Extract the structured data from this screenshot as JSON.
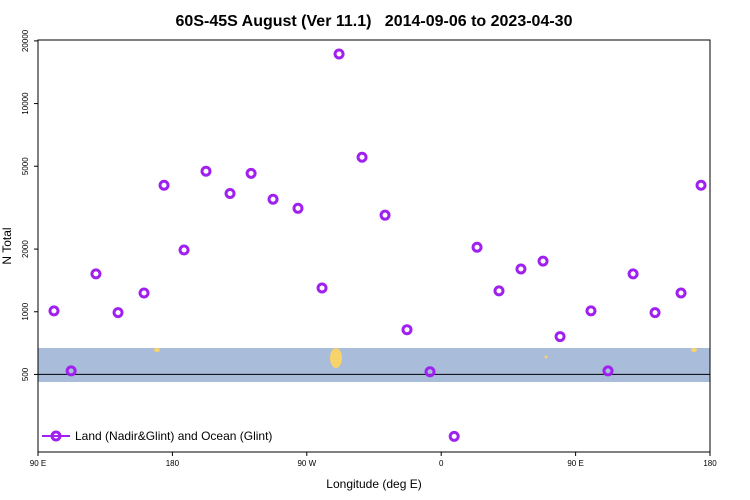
{
  "chart_data": {
    "type": "scatter",
    "title": "60S-45S August (Ver 11.1)   2014-09-06 to 2023-04-30",
    "x_label": "Longitude (deg E)",
    "y_label": "N Total",
    "log_y": true,
    "xlim": [
      90,
      540
    ],
    "ylim": [
      212,
      20200
    ],
    "xticks": [
      {
        "value": 90,
        "label": "90 E"
      },
      {
        "value": 180,
        "label": "180"
      },
      {
        "value": 270,
        "label": "90 W"
      },
      {
        "value": 360,
        "label": "0"
      },
      {
        "value": 450,
        "label": "90 E"
      },
      {
        "value": 540,
        "label": "180"
      }
    ],
    "yticks": [
      500,
      1000,
      2000,
      5000,
      10000,
      20000
    ],
    "reference_line": 500,
    "legend": "lower left",
    "series": [
      {
        "name": "Land (Nadir&Glint) and Ocean (Glint)",
        "color": "#a020f0",
        "x": [
          100.7,
          112.2,
          128.8,
          143.6,
          161,
          174.4,
          187.8,
          202.5,
          218.6,
          232.7,
          247.4,
          264.1,
          280.2,
          291.6,
          307,
          322.4,
          337.1,
          352.5,
          368.7,
          384,
          398.7,
          413.4,
          428.2,
          439.6,
          460.3,
          471.7,
          488.5,
          503.2,
          520.6,
          534
        ],
        "values": [
          1010,
          520,
          1520,
          990,
          1230,
          4050,
          1980,
          4730,
          3700,
          4620,
          3470,
          3140,
          1300,
          17300,
          5520,
          2910,
          820,
          515,
          252,
          2040,
          1260,
          1605,
          1750,
          760,
          1010,
          520,
          1520,
          990,
          1230,
          4050
        ]
      }
    ]
  }
}
